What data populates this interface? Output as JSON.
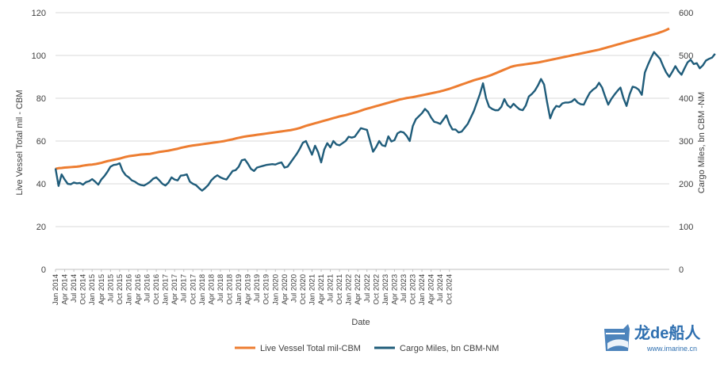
{
  "chart_data": {
    "type": "line",
    "xlabel": "Date",
    "ylabel_left": "Live Vessel Total mil    - CBM",
    "ylabel_right": "Cargo Miles, bn CBM    -NM",
    "ylim_left": [
      0,
      120
    ],
    "ylim_right": [
      0,
      600
    ],
    "yticks_left": [
      "0",
      "20",
      "40",
      "60",
      "80",
      "100",
      "120"
    ],
    "yticks_right": [
      "0",
      "100",
      "200",
      "300",
      "400",
      "500",
      "600"
    ],
    "x_start": "Jan 2014",
    "x_end": "Dec 2024",
    "x_tick_labels": [
      "Jan 2014",
      "Apr 2014",
      "Jul 2014",
      "Oct 2014",
      "Jan 2015",
      "Apr 2015",
      "Jul 2015",
      "Oct 2015",
      "Jan 2016",
      "Apr 2016",
      "Jul 2016",
      "Oct 2016",
      "Jan 2017",
      "Apr 2017",
      "Jul 2017",
      "Oct 2017",
      "Jan 2018",
      "Apr 2018",
      "Jul 2018",
      "Oct 2018",
      "Jan 2019",
      "Apr 2019",
      "Jul 2019",
      "Oct 2019",
      "Jan 2020",
      "Apr 2020",
      "Jul 2020",
      "Oct 2020",
      "Jan 2021",
      "Apr 2021",
      "Jul 2021",
      "Oct 2021",
      "Jan 2022",
      "Apr 2022",
      "Jul 2022",
      "Oct 2022",
      "Jan 2023",
      "Apr 2023",
      "Jul 2023",
      "Oct 2023",
      "Jan 2024",
      "Apr 2024",
      "Jul 2024",
      "Oct 2024"
    ],
    "grid": true,
    "legend_position": "bottom",
    "series": [
      {
        "name": "Live Vessel Total  mil-CBM",
        "axis": "left",
        "color": "#ED7D31",
        "values": [
          47.0,
          47.3,
          47.4,
          47.6,
          47.7,
          47.8,
          47.9,
          48.0,
          48.2,
          48.5,
          48.7,
          48.9,
          49.0,
          49.2,
          49.5,
          49.8,
          50.2,
          50.6,
          50.9,
          51.2,
          51.5,
          51.8,
          52.2,
          52.6,
          52.9,
          53.1,
          53.3,
          53.5,
          53.7,
          53.8,
          53.9,
          54.0,
          54.3,
          54.6,
          54.9,
          55.1,
          55.3,
          55.5,
          55.8,
          56.1,
          56.4,
          56.8,
          57.1,
          57.4,
          57.7,
          57.9,
          58.1,
          58.3,
          58.5,
          58.7,
          58.9,
          59.1,
          59.3,
          59.5,
          59.7,
          59.9,
          60.2,
          60.5,
          60.8,
          61.2,
          61.5,
          61.8,
          62.1,
          62.3,
          62.5,
          62.7,
          62.9,
          63.1,
          63.3,
          63.5,
          63.7,
          63.9,
          64.1,
          64.3,
          64.5,
          64.7,
          64.9,
          65.1,
          65.4,
          65.7,
          66.1,
          66.6,
          67.1,
          67.5,
          67.9,
          68.3,
          68.7,
          69.1,
          69.5,
          69.9,
          70.3,
          70.7,
          71.1,
          71.5,
          71.8,
          72.1,
          72.5,
          72.9,
          73.3,
          73.7,
          74.2,
          74.7,
          75.1,
          75.5,
          75.9,
          76.3,
          76.7,
          77.1,
          77.5,
          77.9,
          78.3,
          78.7,
          79.1,
          79.5,
          79.8,
          80.1,
          80.3,
          80.5,
          80.8,
          81.1,
          81.4,
          81.7,
          82.0,
          82.3,
          82.6,
          82.9,
          83.2,
          83.6,
          84.0,
          84.4,
          84.9,
          85.4,
          85.9,
          86.4,
          86.9,
          87.4,
          87.9,
          88.4,
          88.8,
          89.2,
          89.6,
          90.0,
          90.5,
          91.0,
          91.6,
          92.2,
          92.8,
          93.4,
          94.0,
          94.6,
          95.0,
          95.3,
          95.5,
          95.7,
          95.9,
          96.1,
          96.3,
          96.5,
          96.7,
          97.0,
          97.3,
          97.6,
          97.9,
          98.2,
          98.5,
          98.8,
          99.1,
          99.4,
          99.7,
          100.0,
          100.3,
          100.6,
          100.9,
          101.2,
          101.5,
          101.8,
          102.1,
          102.4,
          102.7,
          103.1,
          103.5,
          103.9,
          104.3,
          104.7,
          105.1,
          105.5,
          105.9,
          106.3,
          106.7,
          107.1,
          107.5,
          107.9,
          108.3,
          108.7,
          109.1,
          109.5,
          109.9,
          110.3,
          110.8,
          111.3,
          111.9,
          112.6
        ]
      },
      {
        "name": "Cargo Miles, bn CBM-NM",
        "axis": "right",
        "color": "#1F5C7A",
        "values": [
          236,
          195,
          222,
          210,
          200,
          199,
          203,
          201,
          202,
          198,
          204,
          206,
          211,
          205,
          198,
          210,
          218,
          228,
          240,
          244,
          245,
          248,
          230,
          220,
          215,
          208,
          205,
          200,
          197,
          196,
          200,
          205,
          212,
          215,
          208,
          200,
          196,
          203,
          215,
          210,
          208,
          219,
          220,
          222,
          205,
          200,
          197,
          190,
          184,
          190,
          197,
          208,
          215,
          220,
          215,
          212,
          210,
          220,
          230,
          232,
          240,
          255,
          257,
          247,
          235,
          230,
          238,
          240,
          242,
          244,
          245,
          246,
          245,
          248,
          250,
          238,
          240,
          250,
          260,
          270,
          282,
          296,
          300,
          284,
          268,
          289,
          274,
          250,
          280,
          295,
          285,
          300,
          292,
          290,
          295,
          300,
          310,
          308,
          310,
          320,
          330,
          328,
          326,
          300,
          275,
          286,
          300,
          290,
          288,
          311,
          299,
          302,
          318,
          322,
          320,
          312,
          300,
          335,
          351,
          358,
          365,
          375,
          368,
          355,
          345,
          343,
          340,
          350,
          360,
          340,
          327,
          327,
          320,
          322,
          331,
          340,
          355,
          370,
          390,
          410,
          435,
          400,
          380,
          375,
          372,
          372,
          380,
          398,
          384,
          378,
          387,
          380,
          374,
          372,
          383,
          404,
          410,
          418,
          430,
          445,
          432,
          390,
          353,
          372,
          382,
          380,
          388,
          390,
          390,
          392,
          398,
          390,
          386,
          385,
          400,
          413,
          420,
          425,
          436,
          425,
          404,
          385,
          398,
          408,
          417,
          425,
          400,
          382,
          409,
          427,
          425,
          420,
          408,
          460,
          478,
          494,
          508,
          500,
          492,
          475,
          460,
          450,
          462,
          475,
          463,
          455,
          470,
          484,
          490,
          480,
          482,
          470,
          477,
          488,
          492,
          495,
          504
        ]
      }
    ]
  },
  "legend": {
    "items": [
      {
        "label": "Live Vessel Total  mil-CBM",
        "color": "#ED7D31"
      },
      {
        "label": "Cargo Miles, bn CBM-NM",
        "color": "#1F5C7A"
      }
    ]
  },
  "watermark": {
    "brand": "龙de船人",
    "url": "www.imarine.cn",
    "color": "#2E6FB0"
  }
}
